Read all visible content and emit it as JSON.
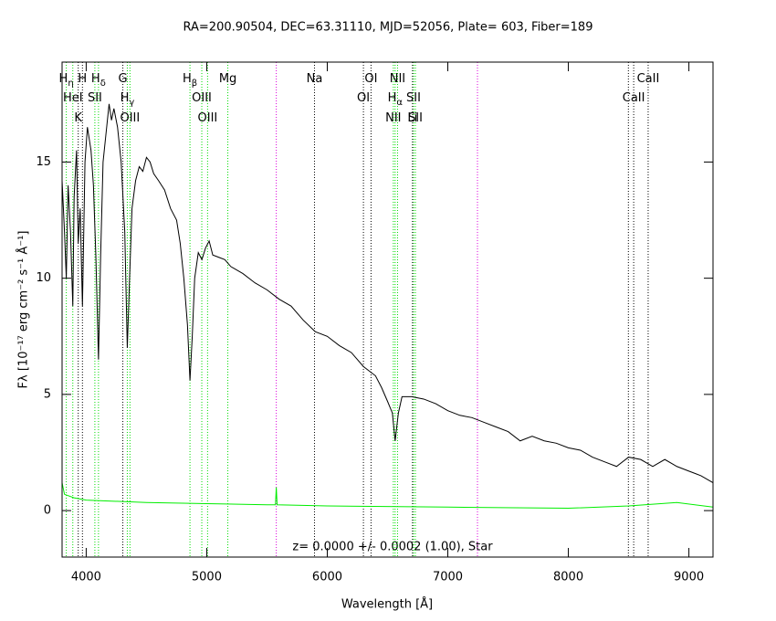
{
  "chart_data": {
    "type": "line",
    "title": "RA=200.90504, DEC=63.31110, MJD=52056, Plate=  603, Fiber=189",
    "annotation": "z= 0.0000 +/- 0.0002 (1.00), Star",
    "x_label": "Wavelength [Å]",
    "y_label": "Fλ [10⁻¹⁷ erg cm⁻² s⁻¹ Å⁻¹]",
    "xlim": [
      3800,
      9200
    ],
    "ylim": [
      -2,
      19.3
    ],
    "xticks": [
      4000,
      5000,
      6000,
      7000,
      8000,
      9000
    ],
    "yticks": [
      0,
      5,
      10,
      15
    ],
    "series": [
      {
        "color": "#000000",
        "x": [
          3800,
          3820,
          3835,
          3850,
          3870,
          3889,
          3900,
          3920,
          3934,
          3950,
          3969,
          3990,
          4010,
          4040,
          4060,
          4080,
          4102,
          4120,
          4140,
          4170,
          4190,
          4210,
          4230,
          4260,
          4290,
          4320,
          4341,
          4360,
          4380,
          4410,
          4440,
          4470,
          4500,
          4530,
          4560,
          4600,
          4650,
          4700,
          4750,
          4780,
          4810,
          4840,
          4861,
          4880,
          4900,
          4930,
          4960,
          4990,
          5020,
          5050,
          5100,
          5150,
          5200,
          5300,
          5400,
          5500,
          5600,
          5700,
          5800,
          5900,
          6000,
          6100,
          6200,
          6300,
          6400,
          6450,
          6500,
          6540,
          6563,
          6590,
          6620,
          6700,
          6800,
          6900,
          7000,
          7100,
          7200,
          7300,
          7400,
          7500,
          7600,
          7700,
          7800,
          7900,
          8000,
          8100,
          8200,
          8300,
          8400,
          8500,
          8600,
          8700,
          8800,
          8900,
          9000,
          9100,
          9200
        ],
        "values": [
          14.2,
          12,
          10,
          14,
          12,
          8.8,
          13.5,
          15.5,
          11.5,
          13,
          8.8,
          15,
          16.5,
          15.5,
          14,
          11,
          6.5,
          11,
          15,
          16.5,
          17.5,
          16.8,
          17.3,
          16.5,
          15,
          12,
          7,
          10,
          13,
          14.2,
          14.8,
          14.6,
          15.2,
          15,
          14.5,
          14.2,
          13.8,
          13,
          12.5,
          11.5,
          10,
          8,
          5.6,
          7.5,
          10,
          11.1,
          10.8,
          11.3,
          11.6,
          11,
          10.9,
          10.8,
          10.5,
          10.2,
          9.8,
          9.5,
          9.1,
          8.8,
          8.2,
          7.7,
          7.5,
          7.1,
          6.8,
          6.2,
          5.8,
          5.3,
          4.7,
          4.2,
          3,
          4.2,
          4.9,
          4.9,
          4.8,
          4.6,
          4.3,
          4.1,
          4,
          3.8,
          3.6,
          3.4,
          3,
          3.2,
          3,
          2.9,
          2.7,
          2.6,
          2.3,
          2.1,
          1.9,
          2.3,
          2.2,
          1.9,
          2.2,
          1.9,
          1.7,
          1.5,
          1.2
        ]
      },
      {
        "color": "#00ee00",
        "x": [
          3800,
          3820,
          3900,
          4000,
          4500,
          5000,
          5500,
          5570,
          5577,
          5584,
          6000,
          7000,
          8000,
          8500,
          8900,
          9200
        ],
        "values": [
          1.2,
          0.7,
          0.55,
          0.45,
          0.35,
          0.3,
          0.25,
          0.25,
          1.0,
          0.25,
          0.2,
          0.15,
          0.1,
          0.2,
          0.35,
          0.15
        ]
      }
    ],
    "lines": [
      {
        "label": "H",
        "sub": "η",
        "wave": 3835,
        "color": "#00dd00"
      },
      {
        "label": "H",
        "wave": 3969,
        "color": "#000000"
      },
      {
        "label": "G",
        "wave": 4304,
        "color": "#000000"
      },
      {
        "label": "H",
        "sub": "β",
        "wave": 4861,
        "color": "#00dd00"
      },
      {
        "label": "Mg",
        "wave": 5175,
        "color": "#00dd00"
      },
      {
        "label": "Na",
        "wave": 5894,
        "color": "#000000"
      },
      {
        "label": "OI",
        "wave": 6363,
        "color": "#000000"
      },
      {
        "label": "NII",
        "wave": 6583,
        "color": "#00dd00"
      },
      {
        "label": "SII",
        "wave": 6716,
        "color": "#00dd00"
      },
      {
        "label": "HeI",
        "wave": 3889,
        "color": "#00dd00"
      },
      {
        "label": "SII",
        "wave": 4072,
        "color": "#00dd00"
      },
      {
        "label": "H",
        "sub": "γ",
        "wave": 4341,
        "color": "#00dd00"
      },
      {
        "label": "OIII",
        "wave": 4959,
        "color": "#00dd00"
      },
      {
        "label": "NII",
        "wave": 6548,
        "color": "#00dd00"
      },
      {
        "label": "Li",
        "wave": 6707,
        "color": "#000000"
      },
      {
        "label": "CaII",
        "wave": 8662,
        "color": "#000000"
      },
      {
        "label": "K",
        "wave": 3934,
        "color": "#000000"
      },
      {
        "label": "H",
        "sub": "δ",
        "wave": 4102,
        "color": "#00dd00"
      },
      {
        "label": "OIII",
        "wave": 4363,
        "color": "#00dd00"
      },
      {
        "label": "OIII",
        "wave": 5007,
        "color": "#00dd00"
      },
      {
        "label": "OI",
        "wave": 6300,
        "color": "#000000"
      },
      {
        "label": "H",
        "sub": "α",
        "wave": 6563,
        "color": "#00dd00"
      },
      {
        "label": "SII",
        "wave": 6731,
        "color": "#00dd00"
      },
      {
        "label": "CaII",
        "wave": 8542,
        "color": "#000000"
      },
      {
        "wave": 8498,
        "color": "#000000"
      },
      {
        "wave": 5577,
        "color": "#dd00dd"
      },
      {
        "wave": 7246,
        "color": "#dd00dd"
      }
    ]
  }
}
